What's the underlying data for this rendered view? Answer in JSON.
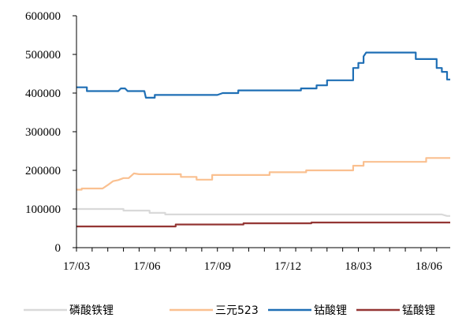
{
  "chart_data": {
    "type": "line",
    "x_ticks": [
      "17/03",
      "17/06",
      "17/09",
      "17/12",
      "18/03",
      "18/06"
    ],
    "y_ticks": [
      "0",
      "100000",
      "200000",
      "300000",
      "400000",
      "500000",
      "600000"
    ],
    "ylim": [
      0,
      600000
    ],
    "grid": false,
    "legend_position": "bottom",
    "series": [
      {
        "name": "磷酸铁锂",
        "color": "#d9d9d9",
        "points": [
          [
            0,
            100000
          ],
          [
            9,
            100000
          ],
          [
            9,
            96000
          ],
          [
            14,
            96000
          ],
          [
            14,
            90000
          ],
          [
            17,
            90000
          ],
          [
            17,
            86000
          ],
          [
            29,
            86000
          ],
          [
            32,
            86000
          ],
          [
            47,
            86000
          ],
          [
            52,
            86000
          ],
          [
            68,
            86000
          ],
          [
            70,
            86000
          ],
          [
            71,
            82000
          ],
          [
            71.6,
            82000
          ]
        ]
      },
      {
        "name": "三元523",
        "color": "#fac090",
        "points": [
          [
            0,
            150000
          ],
          [
            1,
            150000
          ],
          [
            1,
            153000
          ],
          [
            5,
            153000
          ],
          [
            6,
            162000
          ],
          [
            7,
            172000
          ],
          [
            8,
            175000
          ],
          [
            9,
            180000
          ],
          [
            10,
            180000
          ],
          [
            11,
            192000
          ],
          [
            12,
            190000
          ],
          [
            20,
            190000
          ],
          [
            20,
            183000
          ],
          [
            23,
            183000
          ],
          [
            23,
            176000
          ],
          [
            26,
            176000
          ],
          [
            26,
            188000
          ],
          [
            37,
            188000
          ],
          [
            37,
            195000
          ],
          [
            44,
            195000
          ],
          [
            44,
            200000
          ],
          [
            53,
            200000
          ],
          [
            53,
            212000
          ],
          [
            55,
            212000
          ],
          [
            55,
            222000
          ],
          [
            67,
            222000
          ],
          [
            67,
            232000
          ],
          [
            71.6,
            232000
          ]
        ]
      },
      {
        "name": "钴酸锂",
        "color": "#1f6fb5",
        "points": [
          [
            0,
            415000
          ],
          [
            2,
            415000
          ],
          [
            2,
            405000
          ],
          [
            8,
            405000
          ],
          [
            8.5,
            412000
          ],
          [
            9.3,
            412000
          ],
          [
            9.8,
            405000
          ],
          [
            13,
            405000
          ],
          [
            13.3,
            388000
          ],
          [
            15,
            388000
          ],
          [
            15,
            395000
          ],
          [
            27,
            395000
          ],
          [
            28,
            400000
          ],
          [
            31,
            400000
          ],
          [
            31,
            407000
          ],
          [
            43,
            407000
          ],
          [
            43,
            412000
          ],
          [
            46,
            412000
          ],
          [
            46,
            420000
          ],
          [
            48,
            420000
          ],
          [
            48,
            433000
          ],
          [
            53,
            433000
          ],
          [
            53,
            465000
          ],
          [
            54,
            465000
          ],
          [
            54,
            478000
          ],
          [
            55,
            478000
          ],
          [
            55,
            495000
          ],
          [
            55.5,
            505000
          ],
          [
            65,
            505000
          ],
          [
            65,
            488000
          ],
          [
            69,
            488000
          ],
          [
            69,
            465000
          ],
          [
            70,
            465000
          ],
          [
            70,
            455000
          ],
          [
            71,
            455000
          ],
          [
            71,
            435000
          ],
          [
            71.6,
            435000
          ]
        ]
      },
      {
        "name": "锰酸锂",
        "color": "#943634",
        "points": [
          [
            0,
            55000
          ],
          [
            19,
            55000
          ],
          [
            19,
            60000
          ],
          [
            32,
            60000
          ],
          [
            32,
            63000
          ],
          [
            45,
            63000
          ],
          [
            45,
            65000
          ],
          [
            71.6,
            65000
          ]
        ]
      }
    ]
  }
}
